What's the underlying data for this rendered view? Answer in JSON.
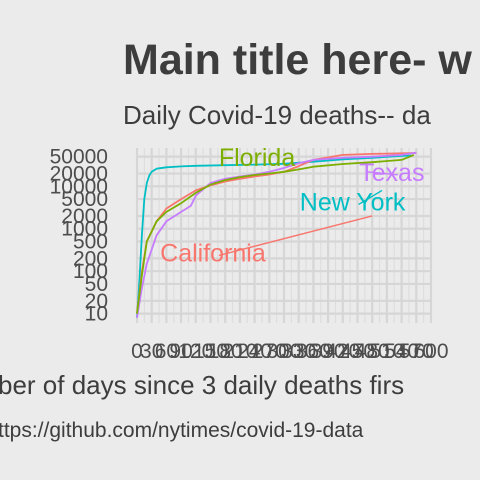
{
  "chart_data": {
    "type": "line",
    "title": "Main title here- w",
    "subtitle": "Daily Covid-19 deaths-- da",
    "xlabel": "ber of days since 3 daily deaths firs",
    "caption": "ttps://github.com/nytimes/covid-19-data",
    "ylabel": "",
    "x_scale": "linear",
    "y_scale": "log10",
    "xlim": [
      0,
      600
    ],
    "ylim": [
      6,
      80000
    ],
    "x_ticks": [
      0,
      30,
      60,
      90,
      120,
      150,
      180,
      210,
      240,
      270,
      300,
      330,
      360,
      390,
      420,
      450,
      480,
      510,
      540,
      570,
      600
    ],
    "x_tick_labels": [
      "0",
      "30",
      "60",
      "90",
      "120",
      "150",
      "180",
      "210",
      "240",
      "270",
      "300",
      "330",
      "360",
      "390",
      "420",
      "450",
      "480",
      "510",
      "540",
      "570",
      "600"
    ],
    "y_ticks": [
      10,
      20,
      50,
      100,
      200,
      500,
      1000,
      2000,
      5000,
      10000,
      20000,
      50000
    ],
    "y_tick_labels": [
      "10",
      "20",
      "50",
      "100",
      "200",
      "500",
      "1000",
      "2000",
      "5000",
      "10000",
      "20000",
      "50000"
    ],
    "grid": true,
    "legend": "none (direct labels)",
    "series": [
      {
        "name": "New York",
        "color": "#00bfc4",
        "x": [
          0,
          5,
          10,
          15,
          20,
          25,
          30,
          40,
          60,
          90,
          120,
          180,
          240,
          300,
          360,
          420,
          480,
          540,
          560
        ],
        "y": [
          8,
          60,
          700,
          5000,
          12000,
          18000,
          22000,
          26000,
          28000,
          29500,
          30500,
          31500,
          32500,
          34000,
          38000,
          43000,
          47000,
          52000,
          53000
        ]
      },
      {
        "name": "California",
        "color": "#f8766d",
        "x": [
          0,
          10,
          20,
          40,
          60,
          90,
          120,
          150,
          180,
          210,
          240,
          270,
          300,
          330,
          360,
          420,
          480,
          540,
          570
        ],
        "y": [
          10,
          100,
          500,
          1500,
          3000,
          5000,
          8000,
          10500,
          13000,
          15000,
          17000,
          19000,
          22000,
          30000,
          42000,
          55000,
          58000,
          60000,
          61000
        ]
      },
      {
        "name": "Texas",
        "color": "#c77cff",
        "x": [
          0,
          10,
          20,
          40,
          60,
          90,
          110,
          120,
          150,
          180,
          210,
          240,
          270,
          300,
          330,
          360,
          420,
          480,
          540,
          570
        ],
        "y": [
          8,
          40,
          150,
          700,
          1500,
          2500,
          3500,
          6000,
          12000,
          15000,
          17000,
          19000,
          22000,
          27000,
          35000,
          42000,
          47000,
          50000,
          55000,
          62000
        ]
      },
      {
        "name": "Florida",
        "color": "#7cae00",
        "x": [
          0,
          10,
          20,
          40,
          60,
          90,
          120,
          150,
          180,
          210,
          240,
          270,
          300,
          330,
          360,
          420,
          480,
          540,
          565
        ],
        "y": [
          10,
          80,
          500,
          1500,
          2500,
          4000,
          7000,
          11000,
          14000,
          16500,
          18500,
          20000,
          22000,
          25000,
          29000,
          33500,
          37000,
          42000,
          55000
        ]
      }
    ],
    "annotations": [
      {
        "label": "Florida",
        "color": "#7cae00",
        "text_x": 245,
        "text_y": 30000,
        "line_x2": 245,
        "line_y2": 30000
      },
      {
        "label": "Texas",
        "color": "#c77cff",
        "text_x": 520,
        "text_y": 13500,
        "line_x2": 470,
        "line_y2": 22000
      },
      {
        "label": "New York",
        "color": "#00bfc4",
        "text_x": 440,
        "text_y": 2700,
        "line_x2": 500,
        "line_y2": 8000
      },
      {
        "label": "California",
        "color": "#f8766d",
        "text_x": 155,
        "text_y": 170,
        "line_x2": 480,
        "line_y2": 2000
      }
    ]
  }
}
